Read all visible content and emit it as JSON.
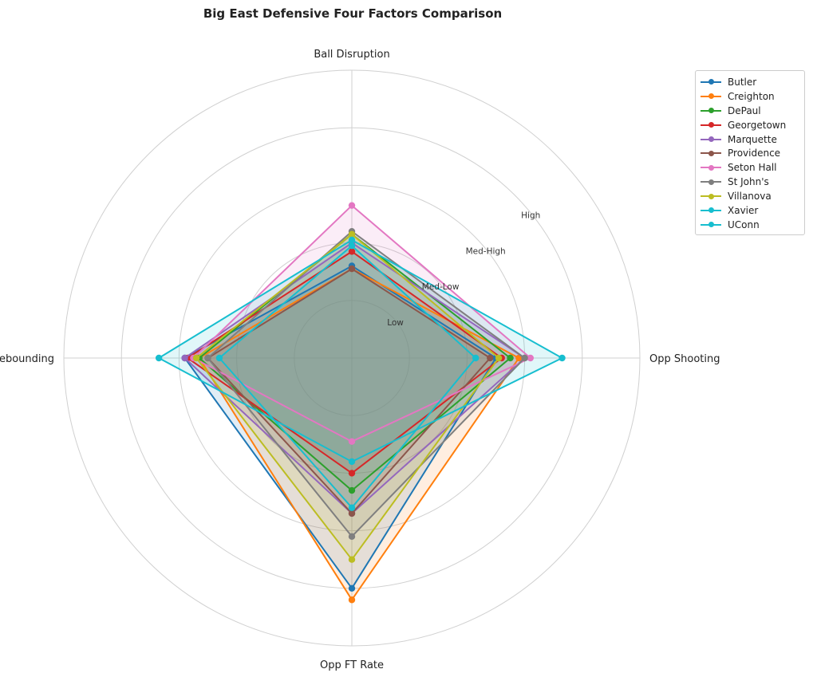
{
  "chart_data": {
    "type": "radar",
    "title": "Big East Defensive Four Factors Comparison",
    "axes": [
      "Ball Disruption",
      "Opp Shooting",
      "Opp FT Rate",
      "Def Rebounding"
    ],
    "level_labels": [
      "Low",
      "Med-Low",
      "Med-High",
      "High"
    ],
    "range": [
      0,
      5
    ],
    "grid": true,
    "legend_position": "top-right",
    "series": [
      {
        "name": "Butler",
        "color": "#1f77b4",
        "values": [
          1.6,
          2.5,
          4.0,
          2.9
        ]
      },
      {
        "name": "Creighton",
        "color": "#ff7f0e",
        "values": [
          1.55,
          2.9,
          4.2,
          2.65
        ]
      },
      {
        "name": "DePaul",
        "color": "#2ca02c",
        "values": [
          2.15,
          2.75,
          2.3,
          2.65
        ]
      },
      {
        "name": "Georgetown",
        "color": "#d62728",
        "values": [
          1.85,
          2.6,
          2.0,
          2.85
        ]
      },
      {
        "name": "Marquette",
        "color": "#9467bd",
        "values": [
          2.0,
          3.0,
          2.7,
          2.9
        ]
      },
      {
        "name": "Providence",
        "color": "#8c564b",
        "values": [
          1.55,
          2.4,
          2.7,
          2.5
        ]
      },
      {
        "name": "Seton Hall",
        "color": "#e377c2",
        "values": [
          2.65,
          3.1,
          1.45,
          2.75
        ]
      },
      {
        "name": "St John's",
        "color": "#7f7f7f",
        "values": [
          2.2,
          3.0,
          3.1,
          2.5
        ]
      },
      {
        "name": "Villanova",
        "color": "#bcbd22",
        "values": [
          2.15,
          2.55,
          3.5,
          2.7
        ]
      },
      {
        "name": "Xavier",
        "color": "#17becf",
        "values": [
          1.95,
          2.15,
          2.6,
          2.3
        ]
      },
      {
        "name": "UConn",
        "color": "#17becf",
        "values": [
          2.05,
          3.65,
          1.8,
          3.35
        ]
      }
    ]
  }
}
